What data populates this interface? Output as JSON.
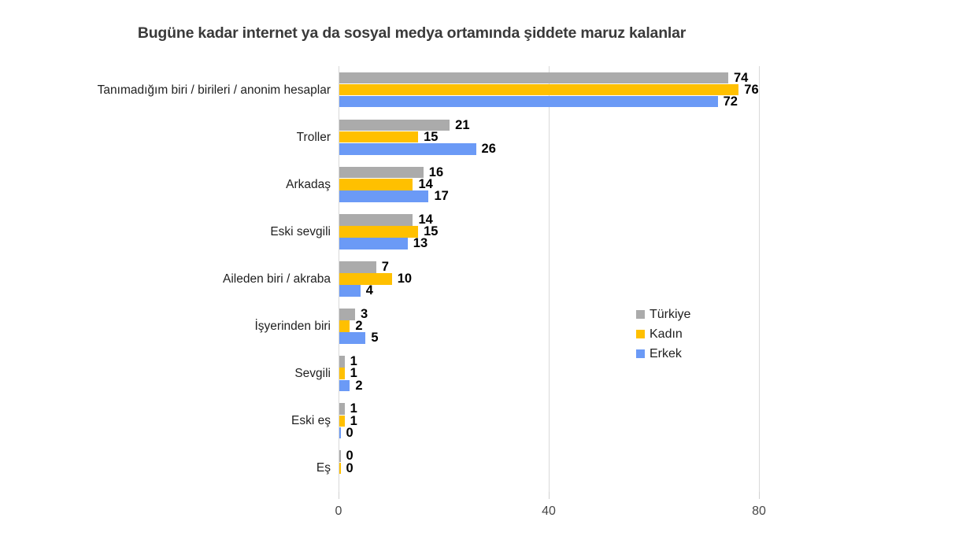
{
  "chart_data": {
    "type": "bar",
    "orientation": "horizontal",
    "title": "Bugüne kadar internet ya da sosyal medya ortamında şiddete maruz kalanlar",
    "categories": [
      "Tanımadığım biri / birileri / anonim hesaplar",
      "Troller",
      "Arkadaş",
      "Eski sevgili",
      "Aileden biri / akraba",
      "İşyerinden biri",
      "Sevgili",
      "Eski eş",
      "Eş"
    ],
    "series": [
      {
        "name": "Türkiye",
        "color": "#ababab",
        "values": [
          74,
          21,
          16,
          14,
          7,
          3,
          1,
          1,
          0
        ]
      },
      {
        "name": "Kadın",
        "color": "#ffc000",
        "values": [
          76,
          15,
          14,
          15,
          10,
          2,
          1,
          1,
          0
        ]
      },
      {
        "name": "Erkek",
        "color": "#6b9af6",
        "values": [
          72,
          26,
          17,
          13,
          4,
          5,
          2,
          0,
          null
        ]
      }
    ],
    "x_axis": {
      "ticks": [
        0,
        40,
        80
      ],
      "min": 0,
      "max": 100
    },
    "ylabel": "",
    "xlabel": "",
    "grid": true,
    "legend_position": "right-middle",
    "data_labels": true,
    "colors": {
      "grid": "#d9d9d9",
      "title_text": "#3a3a3a",
      "label_text": "#000000",
      "axis_text": "#474747"
    }
  }
}
